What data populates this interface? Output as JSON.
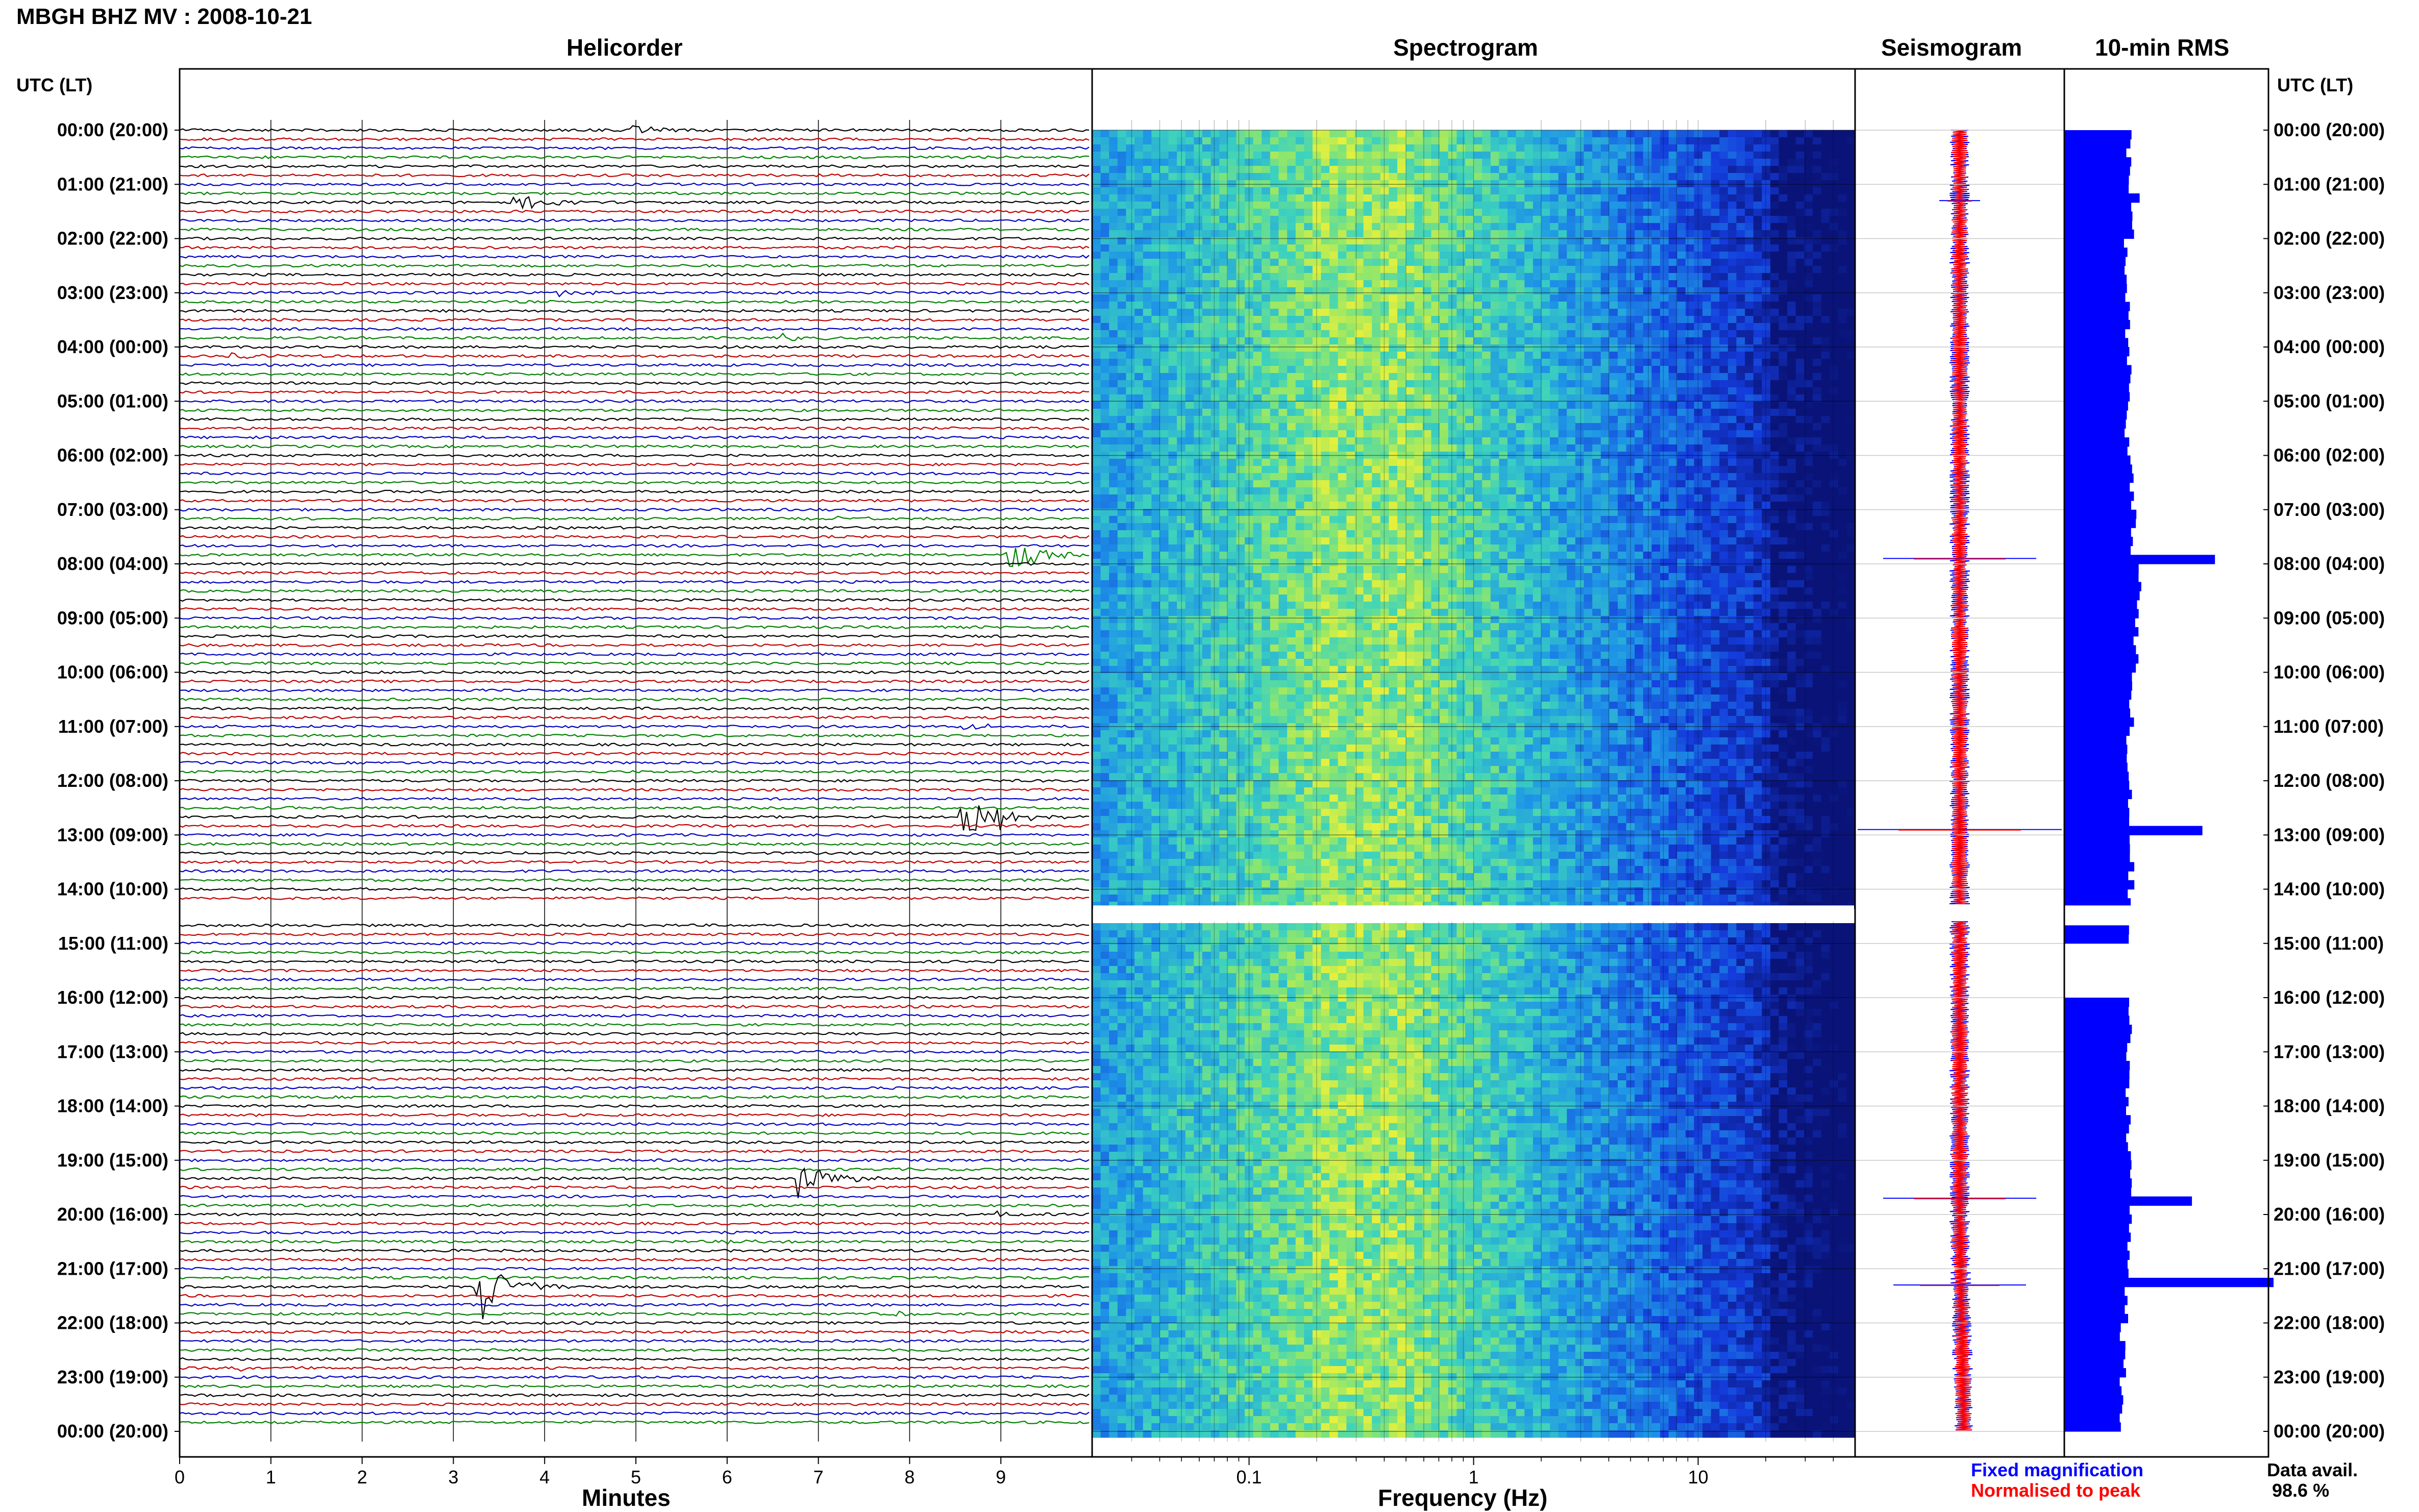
{
  "header": {
    "title": "MBGH BHZ MV : 2008-10-21"
  },
  "panels": {
    "helicorder": "Helicorder",
    "spectrogram": "Spectrogram",
    "seismogram": "Seismogram",
    "rms": "10-min RMS"
  },
  "axis": {
    "left_label": "UTC (LT)",
    "right_label": "UTC (LT)",
    "x_helicorder": "Minutes",
    "x_spectrogram": "Frequency (Hz)"
  },
  "legend": {
    "fixed": "Fixed magnification",
    "normalised": "Normalised to peak",
    "avail_label": "Data avail.",
    "avail_value": "98.6 %"
  },
  "colors": {
    "helicorder_cycle": [
      "#000000",
      "#c00000",
      "#0000c0",
      "#008000"
    ],
    "fixed": "#0000ff",
    "normalised": "#ff0000",
    "rms_bar": "#0000ff"
  },
  "chart_data": [
    {
      "type": "line",
      "title": "Helicorder",
      "xlabel": "Minutes",
      "xlim": [
        0,
        10
      ],
      "x_ticks": [
        "0",
        "1",
        "2",
        "3",
        "4",
        "5",
        "6",
        "7",
        "8",
        "9"
      ],
      "row_labels": [
        "00:00 (20:00)",
        "01:00 (21:00)",
        "02:00 (22:00)",
        "03:00 (23:00)",
        "04:00 (00:00)",
        "05:00 (01:00)",
        "06:00 (02:00)",
        "07:00 (03:00)",
        "08:00 (04:00)",
        "09:00 (05:00)",
        "10:00 (06:00)",
        "11:00 (07:00)",
        "12:00 (08:00)",
        "13:00 (09:00)",
        "14:00 (10:00)",
        "15:00 (11:00)",
        "16:00 (12:00)",
        "17:00 (13:00)",
        "18:00 (14:00)",
        "19:00 (15:00)",
        "20:00 (16:00)",
        "21:00 (17:00)",
        "22:00 (18:00)",
        "23:00 (19:00)",
        "00:00 (20:00)"
      ],
      "rows": 144,
      "events": [
        {
          "hour": 0.0,
          "minute": 5.0,
          "amp": 0.3
        },
        {
          "hour": 1.3,
          "minute": 3.7,
          "amp": 0.6
        },
        {
          "hour": 3.0,
          "minute": 4.2,
          "amp": 0.2
        },
        {
          "hour": 3.8,
          "minute": 6.6,
          "amp": 0.25
        },
        {
          "hour": 4.2,
          "minute": 0.6,
          "amp": 0.25
        },
        {
          "hour": 7.1,
          "minute": 7.2,
          "amp": 0.2
        },
        {
          "hour": 7.8,
          "minute": 9.1,
          "amp": 1.5
        },
        {
          "hour": 11.0,
          "minute": 8.6,
          "amp": 0.25
        },
        {
          "hour": 12.7,
          "minute": 8.6,
          "amp": 1.4
        },
        {
          "hour": 12.7,
          "minute": 8.8,
          "amp": 1.4
        },
        {
          "hour": 19.3,
          "minute": 6.8,
          "amp": 1.3
        },
        {
          "hour": 20.0,
          "minute": 9.0,
          "amp": 0.2
        },
        {
          "hour": 20.5,
          "minute": 6.0,
          "amp": 0.2
        },
        {
          "hour": 21.3,
          "minute": 3.3,
          "amp": 2.4
        },
        {
          "hour": 21.8,
          "minute": 7.9,
          "amp": 0.15
        },
        {
          "hour": 22.8,
          "minute": 0.7,
          "amp": 0.2
        }
      ]
    },
    {
      "type": "heatmap",
      "title": "Spectrogram",
      "xlabel": "Frequency (Hz)",
      "x_scale": "log",
      "xlim": [
        0.02,
        50
      ],
      "x_ticks": [
        "0.1",
        "1",
        "10"
      ],
      "gap_hours": [
        14.3,
        14.6
      ],
      "peak_band_hz": [
        0.2,
        0.5
      ]
    },
    {
      "type": "line",
      "title": "Seismogram",
      "series": [
        {
          "name": "Fixed magnification",
          "color": "#0000ff"
        },
        {
          "name": "Normalised to peak",
          "color": "#ff0000"
        }
      ],
      "spikes_hours": [
        1.3,
        7.9,
        12.9,
        19.7,
        21.3
      ]
    },
    {
      "type": "bar",
      "title": "10-min RMS",
      "orientation": "horizontal",
      "data_availability_percent": 98.6,
      "hourly_rms": [
        0.31,
        0.32,
        0.29,
        0.3,
        0.31,
        0.3,
        0.32,
        0.33,
        0.36,
        0.34,
        0.32,
        0.3,
        0.31,
        0.32,
        0.31,
        null,
        0.31,
        0.3,
        0.31,
        0.32,
        0.31,
        0.3,
        0.28,
        0.27
      ],
      "peaks": [
        {
          "hour": 1.3,
          "value": 0.36
        },
        {
          "hour": 7.9,
          "value": 0.72
        },
        {
          "hour": 12.9,
          "value": 0.66
        },
        {
          "hour": 19.7,
          "value": 0.61
        },
        {
          "hour": 21.3,
          "value": 1.0
        }
      ]
    }
  ]
}
